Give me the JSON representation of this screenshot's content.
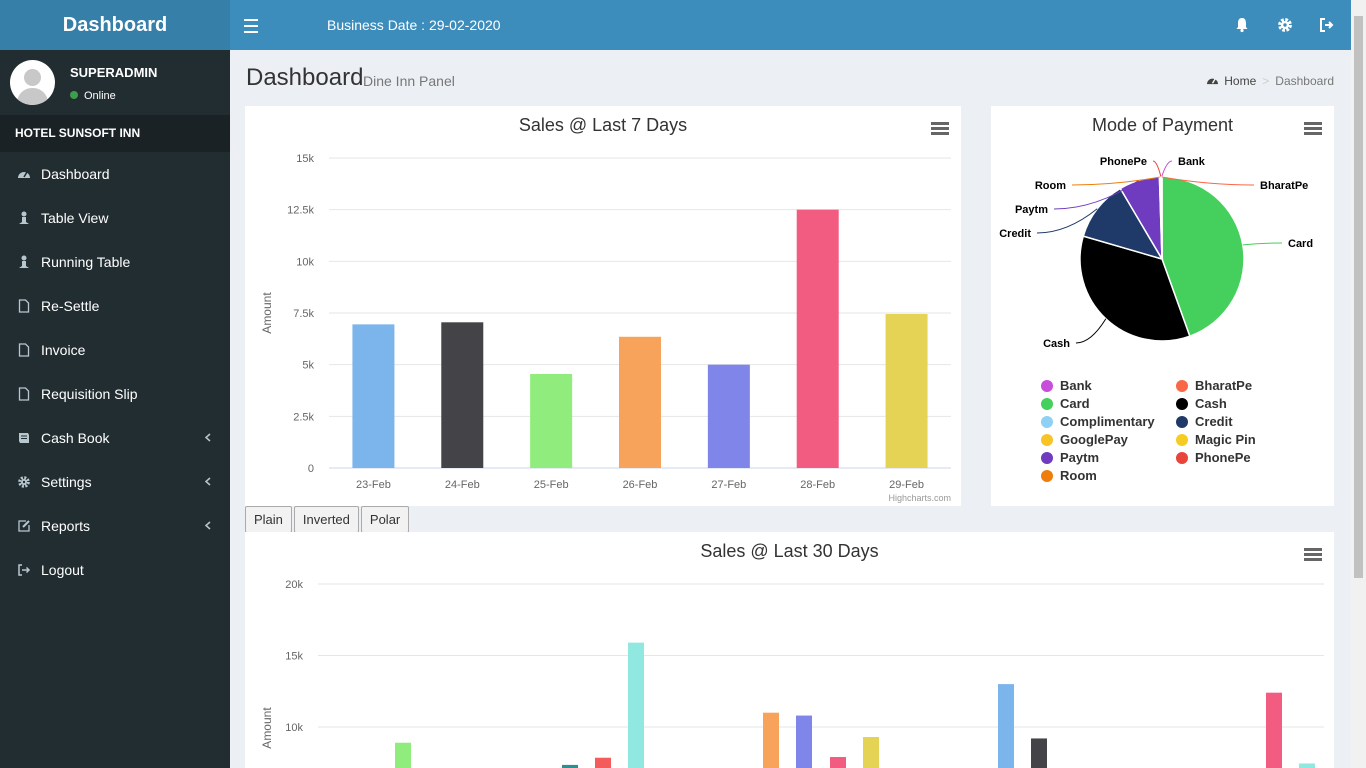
{
  "brand": "Dashboard",
  "header": {
    "business_date": "Business Date : 29-02-2020"
  },
  "user": {
    "name": "SUPERADMIN",
    "status": "Online"
  },
  "hotel": "HOTEL SUNSOFT INN",
  "menu": [
    {
      "label": "Dashboard",
      "icon": "dashboard-icon"
    },
    {
      "label": "Table View",
      "icon": "person-icon"
    },
    {
      "label": "Running Table",
      "icon": "person-icon"
    },
    {
      "label": "Re-Settle",
      "icon": "file-icon"
    },
    {
      "label": "Invoice",
      "icon": "file-icon"
    },
    {
      "label": "Requisition Slip",
      "icon": "file-icon"
    },
    {
      "label": "Cash Book",
      "icon": "book-icon"
    },
    {
      "label": "Settings",
      "icon": "gear-icon"
    },
    {
      "label": "Reports",
      "icon": "edit-icon"
    },
    {
      "label": "Logout",
      "icon": "sign-out-icon"
    }
  ],
  "page": {
    "title": "Dashboard",
    "subtitle": "Dine Inn Panel"
  },
  "breadcrumb": {
    "home": "Home",
    "separator": ">",
    "current": "Dashboard"
  },
  "buttons": {
    "plain": "Plain",
    "inverted": "Inverted",
    "polar": "Polar"
  },
  "chart_data": [
    {
      "type": "bar",
      "title": "Sales @ Last 7 Days",
      "ylabel": "Amount",
      "credit": "Highcharts.com",
      "ylim": [
        0,
        15000
      ],
      "yticks": [
        "0",
        "2.5k",
        "5k",
        "7.5k",
        "10k",
        "12.5k",
        "15k"
      ],
      "categories": [
        "23-Feb",
        "24-Feb",
        "25-Feb",
        "26-Feb",
        "27-Feb",
        "28-Feb",
        "29-Feb"
      ],
      "values": [
        6950,
        7050,
        4550,
        6350,
        5000,
        12500,
        7450
      ],
      "colors": [
        "#7cb5ec",
        "#434348",
        "#90ed7d",
        "#f7a35c",
        "#8085e9",
        "#f15c80",
        "#e4d354"
      ]
    },
    {
      "type": "pie",
      "title": "Mode of Payment",
      "slices": [
        {
          "label": "Card",
          "value": 44.5,
          "color": "#45cf5c"
        },
        {
          "label": "Cash",
          "value": 35,
          "color": "#000000"
        },
        {
          "label": "Credit",
          "value": 12,
          "color": "#1f3a68"
        },
        {
          "label": "Paytm",
          "value": 8,
          "color": "#6f3bbf"
        },
        {
          "label": "Room",
          "value": 0.2,
          "color": "#ee7d0b"
        },
        {
          "label": "PhonePe",
          "value": 0.2,
          "color": "#e8443a"
        },
        {
          "label": "Bank",
          "value": 0.05,
          "color": "#c84ddb"
        },
        {
          "label": "BharatPe",
          "value": 0.05,
          "color": "#fa6745"
        }
      ],
      "legend": [
        {
          "label": "Bank",
          "color": "#c84ddb"
        },
        {
          "label": "BharatPe",
          "color": "#fa6745"
        },
        {
          "label": "Card",
          "color": "#45cf5c"
        },
        {
          "label": "Cash",
          "color": "#000000"
        },
        {
          "label": "Complimentary",
          "color": "#8fd0f5"
        },
        {
          "label": "Credit",
          "color": "#1f3a68"
        },
        {
          "label": "GooglePay",
          "color": "#f8c325"
        },
        {
          "label": "Magic Pin",
          "color": "#f6cc22"
        },
        {
          "label": "Paytm",
          "color": "#6f3bbf"
        },
        {
          "label": "PhonePe",
          "color": "#e8443a"
        },
        {
          "label": "Room",
          "color": "#ee7d0b"
        }
      ]
    },
    {
      "type": "bar",
      "title": "Sales @ Last 30 Days",
      "ylabel": "Amount",
      "yticks": [
        "10k",
        "15k",
        "20k"
      ],
      "ylim": [
        0,
        20000
      ],
      "values": [
        8900,
        7350,
        7850,
        15900,
        11000,
        10800,
        7900,
        9300,
        13000,
        9200,
        12400,
        7450
      ],
      "colors": [
        "#90ed7d",
        "#2b908f",
        "#f45b5b",
        "#91e8e1",
        "#f7a35c",
        "#8085e9",
        "#f15c80",
        "#e4d354",
        "#7cb5ec",
        "#434348",
        "#f15c80",
        "#91e8e1"
      ]
    }
  ]
}
